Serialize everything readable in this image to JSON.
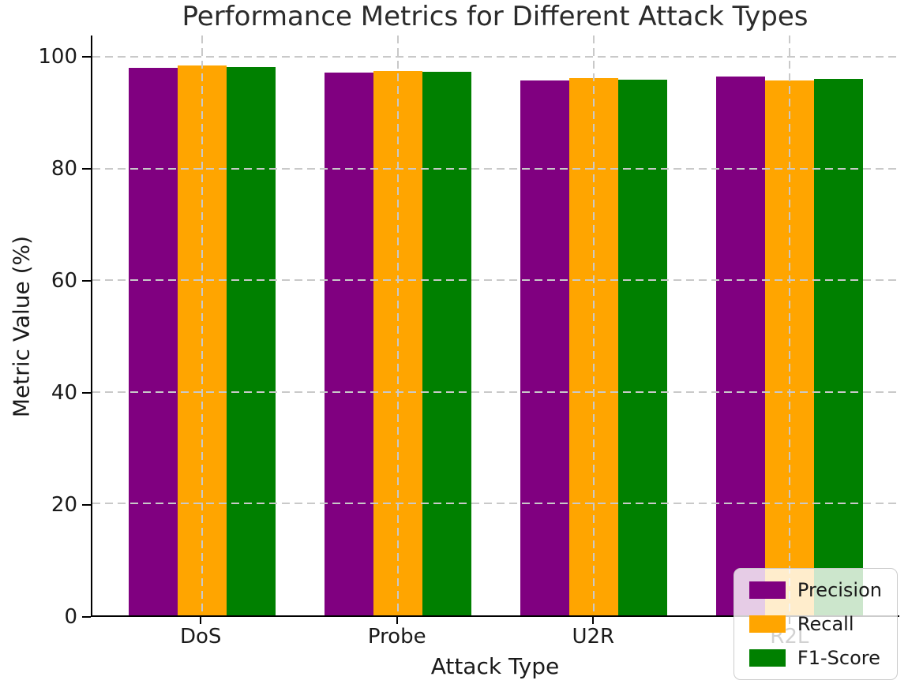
{
  "chart_data": {
    "type": "bar",
    "title": "Performance Metrics for Different Attack Types",
    "xlabel": "Attack Type",
    "ylabel": "Metric Value (%)",
    "categories": [
      "DoS",
      "Probe",
      "U2R",
      "R2L"
    ],
    "series": [
      {
        "name": "Precision",
        "color": "#800080",
        "values": [
          98.0,
          97.2,
          95.8,
          96.5
        ]
      },
      {
        "name": "Recall",
        "color": "#FFA500",
        "values": [
          98.5,
          97.5,
          96.2,
          95.8
        ]
      },
      {
        "name": "F1-Score",
        "color": "#008000",
        "values": [
          98.2,
          97.3,
          96.0,
          96.1
        ]
      }
    ],
    "yticks": [
      0,
      20,
      40,
      60,
      80,
      100
    ],
    "ylim": [
      0,
      103.85
    ],
    "grid": true,
    "grid_style": "dashed",
    "grid_on_top": true,
    "legend_position": "lower right",
    "colors": {
      "grid": "#c9c9c9",
      "spine": "#000000",
      "text": "#1a1a1a",
      "legend_border": "#cccccc",
      "legend_background": "rgba(255,255,255,0.8)"
    }
  }
}
